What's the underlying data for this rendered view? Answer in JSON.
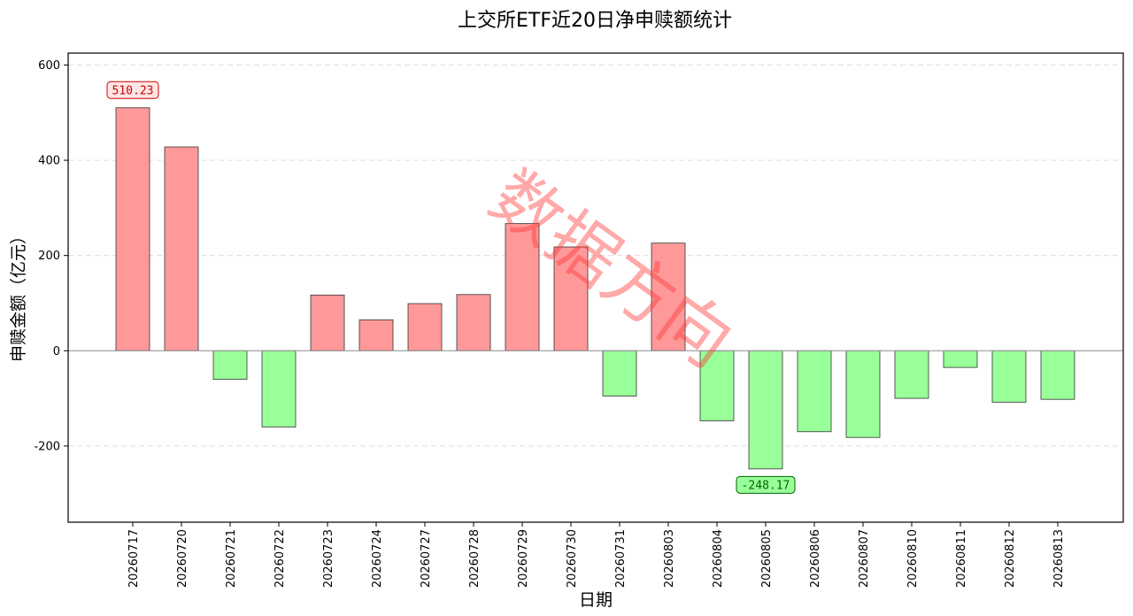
{
  "chart_data": {
    "type": "bar",
    "title": "上交所ETF近20日净申赎额统计",
    "xlabel": "日期",
    "ylabel": "申赎金额（亿元）",
    "categories": [
      "20260717",
      "20260720",
      "20260721",
      "20260722",
      "20260723",
      "20260724",
      "20260727",
      "20260728",
      "20260729",
      "20260730",
      "20260731",
      "20260803",
      "20260804",
      "20260805",
      "20260806",
      "20260807",
      "20260810",
      "20260811",
      "20260812",
      "20260813"
    ],
    "values": [
      510.23,
      428,
      -60,
      -160,
      117,
      65,
      99,
      118,
      267,
      218,
      -95,
      226,
      -147,
      -248.17,
      -170,
      -182,
      -100,
      -35,
      -108,
      -102
    ],
    "ylim": [
      -360,
      625
    ],
    "yticks": [
      -200,
      0,
      200,
      400,
      600
    ],
    "grid": true,
    "colors": {
      "positive": "#ff9999",
      "negative": "#99ff99",
      "edge": "#333333"
    },
    "annotations": [
      {
        "category": "20260717",
        "value": 510.23,
        "text": "510.23",
        "position": "above",
        "color": "#cc0000",
        "bg": "#ffe6e6"
      },
      {
        "category": "20260805",
        "value": -248.17,
        "text": "-248.17",
        "position": "below",
        "color": "#006600",
        "bg": "#99ff99"
      }
    ],
    "watermark": "数据方向"
  }
}
